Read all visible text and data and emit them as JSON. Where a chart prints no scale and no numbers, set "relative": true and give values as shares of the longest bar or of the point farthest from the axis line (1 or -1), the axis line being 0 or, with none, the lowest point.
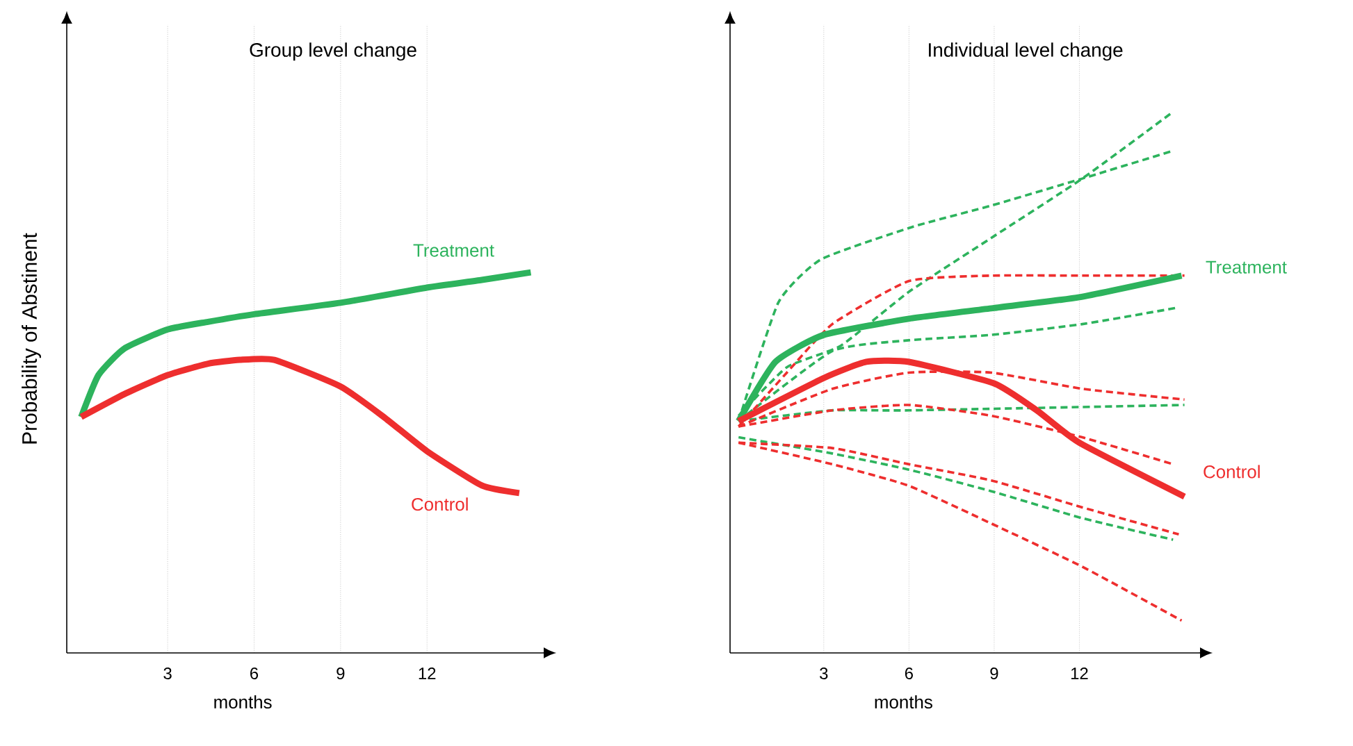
{
  "chart_data": [
    {
      "type": "line",
      "title": "Group level change",
      "xlabel": "months",
      "ylabel": "Probability of Abstinent",
      "relative": true,
      "xlim": [
        -0.5,
        16
      ],
      "xticks": [
        3,
        6,
        9,
        12
      ],
      "grid": "x",
      "line_style": "solid",
      "series": [
        {
          "name": "Treatment",
          "color": "#2db35d",
          "x": [
            0,
            0.6,
            1.5,
            3,
            4.4,
            6,
            9,
            12,
            13.9,
            15.6
          ],
          "values": [
            0.62,
            0.73,
            0.8,
            0.85,
            0.87,
            0.89,
            0.92,
            0.96,
            0.98,
            1
          ]
        },
        {
          "name": "Control",
          "color": "#ee2e2e",
          "x": [
            0,
            1.5,
            3,
            4.4,
            5.5,
            6.7,
            9,
            10.5,
            12,
            13.9,
            15.2
          ],
          "values": [
            0.62,
            0.68,
            0.73,
            0.76,
            0.77,
            0.77,
            0.7,
            0.62,
            0.53,
            0.44,
            0.42
          ]
        }
      ]
    },
    {
      "type": "line",
      "title": "Individual level change",
      "xlabel": "months",
      "relative": true,
      "xlim": [
        -0.3,
        16.2
      ],
      "xticks": [
        3,
        6,
        9,
        12
      ],
      "grid": "x",
      "line_style": "solid",
      "series": [
        {
          "color": "#2db35d",
          "line_style": "dashed",
          "x": [
            0,
            1.4,
            2.9,
            6.1,
            8.9,
            12.1,
            15.2
          ],
          "values": [
            0.43,
            0.65,
            0.73,
            0.79,
            0.83,
            0.88,
            0.93
          ]
        },
        {
          "color": "#2db35d",
          "line_style": "dashed",
          "x": [
            0,
            1.7,
            3.6,
            6,
            8.9,
            12.1,
            15.2
          ],
          "values": [
            0.44,
            0.53,
            0.57,
            0.67,
            0.77,
            0.88,
            1
          ]
        },
        {
          "color": "#2db35d",
          "line_style": "dashed",
          "x": [
            0,
            3.3,
            6,
            8.9,
            12.1,
            15.4
          ],
          "values": [
            0.43,
            0.56,
            0.58,
            0.59,
            0.61,
            0.64
          ]
        },
        {
          "color": "#2db35d",
          "line_style": "dashed",
          "x": [
            0,
            3.3,
            6,
            15.7
          ],
          "values": [
            0.43,
            0.45,
            0.45,
            0.46
          ]
        },
        {
          "color": "#2db35d",
          "line_style": "dashed",
          "x": [
            0,
            3.3,
            6,
            8.9,
            12.1,
            15.3
          ],
          "values": [
            0.4,
            0.37,
            0.34,
            0.3,
            0.25,
            0.21
          ]
        },
        {
          "color": "#ee2e2e",
          "line_style": "dashed",
          "x": [
            0,
            1.7,
            3.3,
            6,
            8.9,
            12.1,
            15.7
          ],
          "values": [
            0.42,
            0.52,
            0.61,
            0.69,
            0.7,
            0.7,
            0.7
          ]
        },
        {
          "color": "#ee2e2e",
          "line_style": "dashed",
          "x": [
            0,
            3.3,
            6,
            8.9,
            12.1,
            15.7
          ],
          "values": [
            0.42,
            0.49,
            0.52,
            0.52,
            0.49,
            0.47
          ]
        },
        {
          "color": "#ee2e2e",
          "line_style": "dashed",
          "x": [
            0,
            3.3,
            6,
            8.9,
            12.1,
            15.3
          ],
          "values": [
            0.42,
            0.45,
            0.46,
            0.44,
            0.4,
            0.35
          ]
        },
        {
          "color": "#ee2e2e",
          "line_style": "dashed",
          "x": [
            0,
            3.3,
            6,
            8.9,
            12.1,
            15.5
          ],
          "values": [
            0.39,
            0.38,
            0.35,
            0.32,
            0.27,
            0.22
          ]
        },
        {
          "color": "#ee2e2e",
          "line_style": "dashed",
          "x": [
            0,
            3.3,
            6,
            8.9,
            12.1,
            15.6
          ],
          "values": [
            0.39,
            0.35,
            0.31,
            0.24,
            0.16,
            0.06
          ]
        },
        {
          "name": "Treatment",
          "color": "#2db35d",
          "x": [
            0,
            1.3,
            3,
            6,
            9,
            12,
            15.6
          ],
          "values": [
            0.43,
            0.54,
            0.59,
            0.62,
            0.64,
            0.66,
            0.7
          ]
        },
        {
          "name": "Control",
          "color": "#ee2e2e",
          "x": [
            0,
            3,
            4.5,
            6,
            9,
            10.5,
            12,
            15.7
          ],
          "values": [
            0.43,
            0.51,
            0.54,
            0.54,
            0.5,
            0.45,
            0.39,
            0.29
          ]
        }
      ]
    }
  ]
}
